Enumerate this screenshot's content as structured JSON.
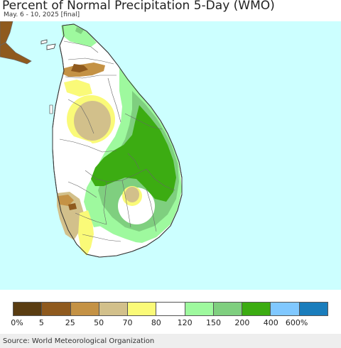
{
  "title": "Percent of Normal Precipitation 5-Day (WMO)",
  "subtitle": "May. 6 - 10, 2025 [final]",
  "map": {
    "ocean_color": "#ccffff",
    "border_color": "#666666"
  },
  "legend": {
    "colors": [
      "#5a3d12",
      "#8f5a1e",
      "#c49245",
      "#d2c08b",
      "#fafa78",
      "#ffffff",
      "#9ef99e",
      "#7fcf7f",
      "#3cac12",
      "#80c8ff",
      "#1a7dbc"
    ],
    "labels": [
      "0%",
      "5",
      "25",
      "50",
      "70",
      "80",
      "120",
      "150",
      "200",
      "400",
      "600%"
    ]
  },
  "source": "Source: World Meteorological Organization"
}
